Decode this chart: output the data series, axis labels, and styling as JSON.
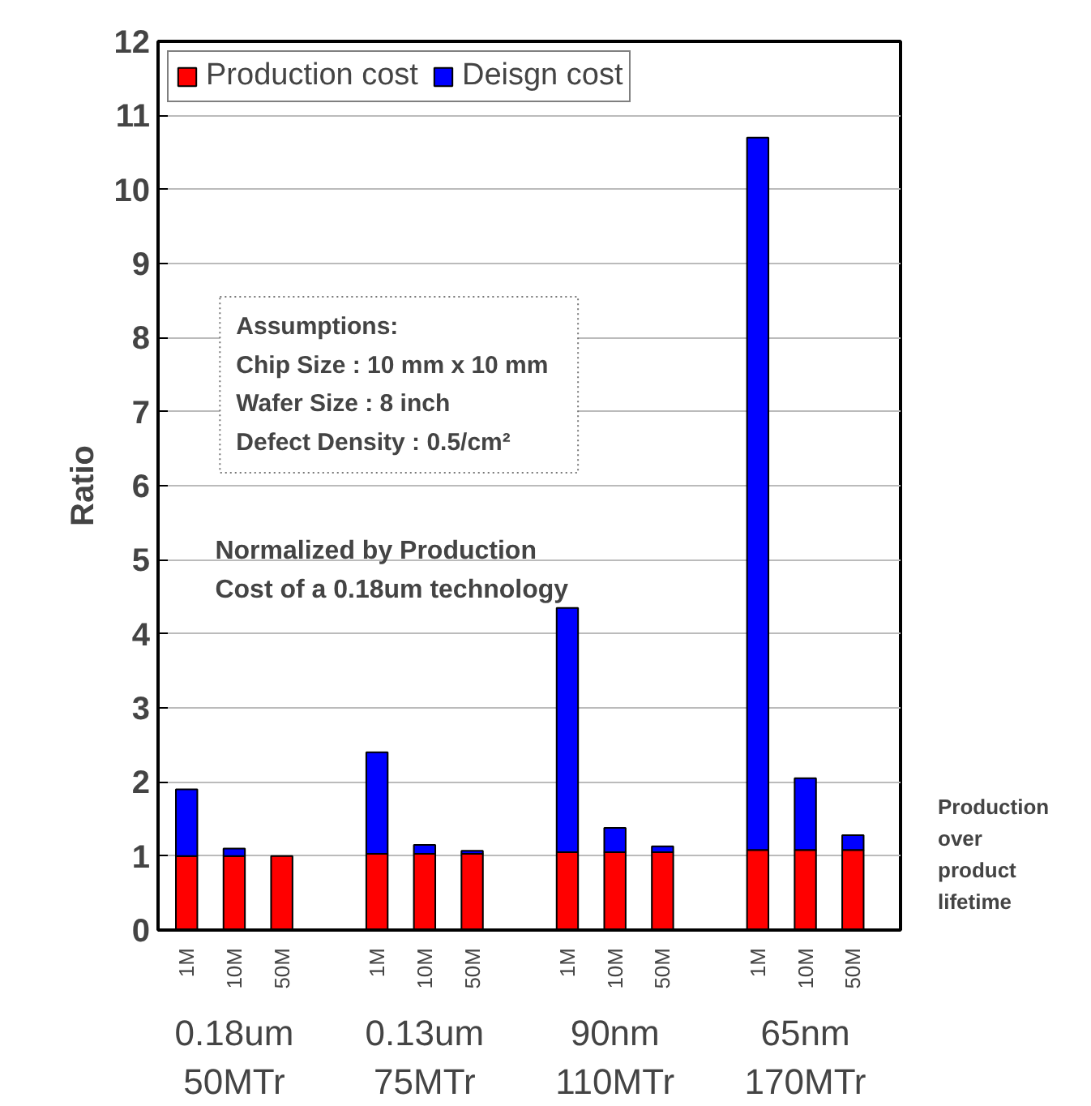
{
  "chart_data": {
    "type": "bar",
    "stacked": true,
    "ylabel": "Ratio",
    "categories": [
      "1M",
      "10M",
      "50M",
      null,
      "1M",
      "10M",
      "50M",
      null,
      "1M",
      "10M",
      "50M",
      null,
      "1M",
      "10M",
      "50M"
    ],
    "series": [
      {
        "name": "Production cost",
        "color": "#ff0000",
        "values": [
          1.0,
          1.0,
          1.0,
          null,
          1.03,
          1.03,
          1.03,
          null,
          1.05,
          1.05,
          1.05,
          null,
          1.08,
          1.08,
          1.08
        ]
      },
      {
        "name": "Deisgn cost",
        "color": "#0000ff",
        "values": [
          0.9,
          0.1,
          null,
          null,
          1.37,
          0.12,
          0.04,
          null,
          3.3,
          0.33,
          0.08,
          null,
          9.62,
          0.97,
          0.2
        ]
      }
    ],
    "ylim": [
      0,
      12
    ],
    "yticks": [
      0,
      1,
      2,
      3,
      4,
      5,
      6,
      7,
      8,
      9,
      10,
      11,
      12
    ],
    "grid": "y",
    "legend": "top left",
    "annotations": [
      "0.18um\n50MTr",
      "0.13um\n75MTr",
      "90nm\n110MTr",
      "65nm\n170MTr",
      "Assumptions:\n  Chip Size : 10 mm x 10 mm\n  Wafer Size : 8 inch\n  Defect Density : 0.5/cm²",
      "Normalized by Production\nCost of a 0.18um technology",
      "Production\nover\nproduct\nlifetime"
    ]
  }
}
